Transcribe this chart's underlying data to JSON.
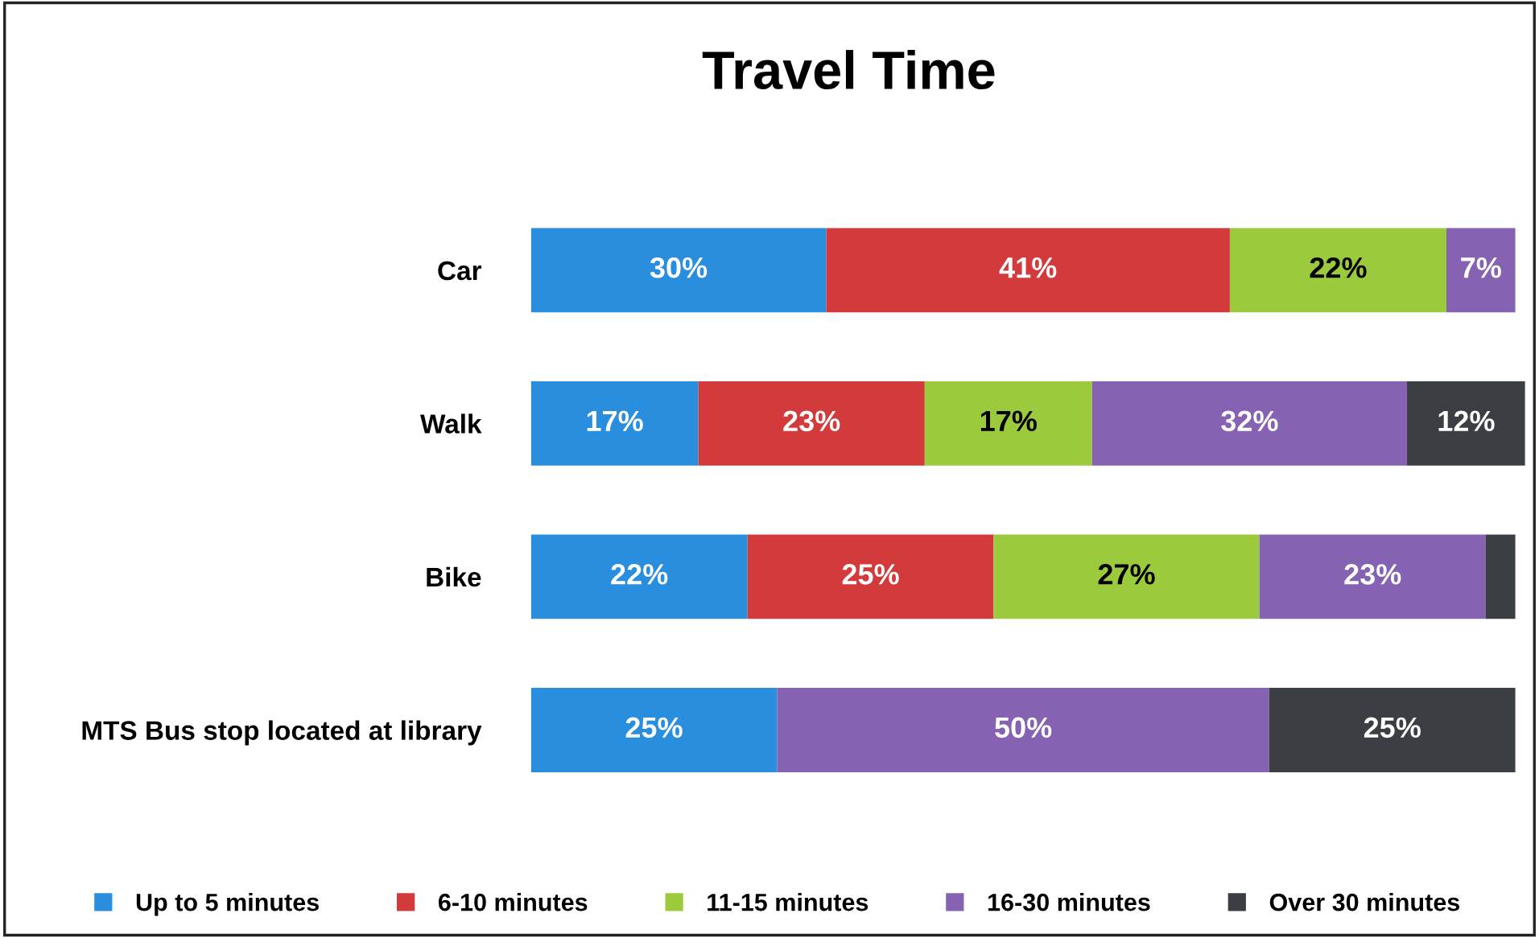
{
  "chart_data": {
    "type": "bar",
    "orientation": "horizontal",
    "stacked": true,
    "title": "Travel Time",
    "categories": [
      "Car",
      "Walk",
      "Bike",
      "MTS Bus stop located at library"
    ],
    "series": [
      {
        "name": "Up to 5 minutes",
        "color": "#2a8ede",
        "values": [
          30,
          17,
          22,
          25
        ],
        "value_labels": [
          "30%",
          "17%",
          "22%",
          "25%"
        ]
      },
      {
        "name": "6-10 minutes",
        "color": "#d23a3c",
        "values": [
          41,
          23,
          25,
          null
        ],
        "value_labels": [
          "41%",
          "23%",
          "25%",
          null
        ]
      },
      {
        "name": "11-15 minutes",
        "color": "#9bcb3d",
        "values": [
          22,
          17,
          27,
          null
        ],
        "value_labels": [
          "22%",
          "17%",
          "27%",
          null
        ]
      },
      {
        "name": "16-30 minutes",
        "color": "#8662b2",
        "values": [
          7,
          32,
          23,
          50
        ],
        "value_labels": [
          "7%",
          "32%",
          "23%",
          "50%"
        ]
      },
      {
        "name": "Over 30 minutes",
        "color": "#3b3e42",
        "values": [
          null,
          12,
          3,
          25
        ],
        "value_labels": [
          null,
          "12%",
          null,
          "25%"
        ]
      }
    ],
    "legend": "bottom",
    "grid": false
  }
}
